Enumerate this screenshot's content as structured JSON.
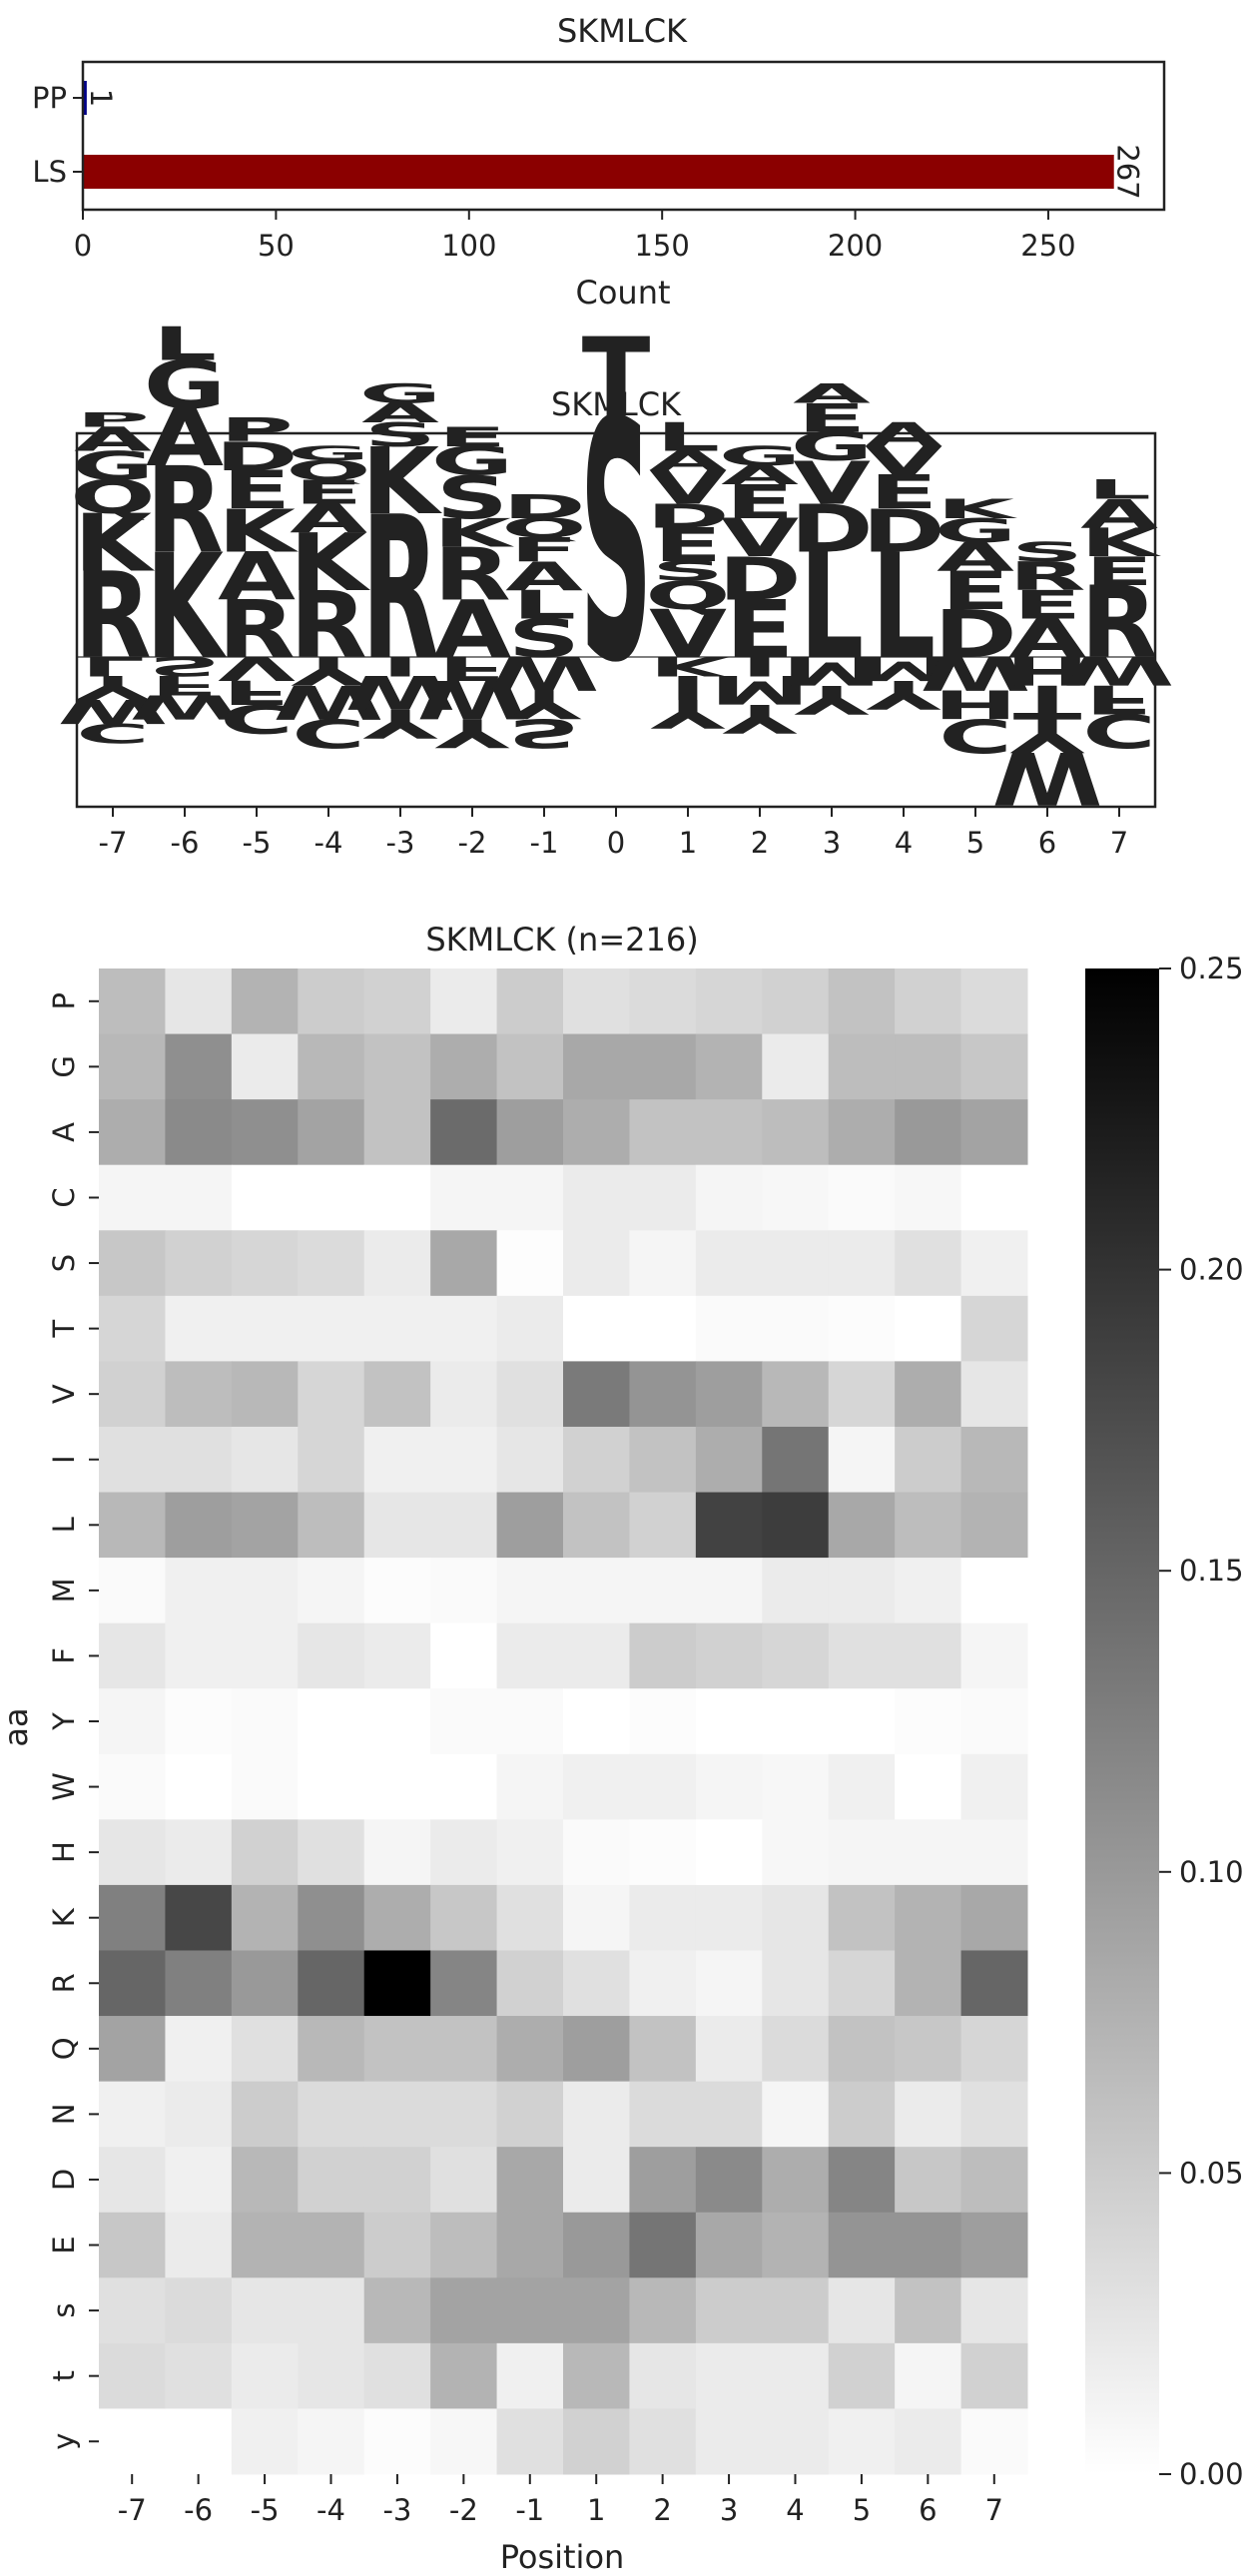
{
  "chart_data": [
    {
      "type": "bar",
      "orientation": "horizontal",
      "title": "SKMLCK",
      "xlabel": "Count",
      "ylabel": "",
      "categories": [
        "PP",
        "LS"
      ],
      "values": [
        1,
        267
      ],
      "value_labels": [
        "1",
        "267"
      ],
      "bar_colors": [
        "#00008b",
        "#8b0000"
      ],
      "xlim": [
        0,
        280
      ],
      "xticks": [
        "0",
        "50",
        "100",
        "150",
        "200",
        "250"
      ],
      "xtick_values": [
        0,
        50,
        100,
        150,
        200,
        250
      ]
    },
    {
      "type": "sequence_logo",
      "title": "SKMLCK",
      "xticks": [
        "-7",
        "-6",
        "-5",
        "-4",
        "-3",
        "-2",
        "-1",
        "0",
        "1",
        "2",
        "3",
        "4",
        "5",
        "6",
        "7"
      ],
      "color_scheme": {
        "KRH": "#0000ff",
        "DE": "#dc143c",
        "STsty": "#8b008b",
        "GAPCQN": "#008000",
        "LIVMFWY": "#daa520",
        "other": "#000000"
      },
      "positions": [
        {
          "pos": "-7",
          "up": [
            [
              "R",
              0.9
            ],
            [
              "K",
              0.6
            ],
            [
              "Q",
              0.35
            ],
            [
              "G",
              0.3
            ],
            [
              "A",
              0.25
            ],
            [
              "P",
              0.15
            ]
          ],
          "down": [
            [
              "L",
              0.2
            ],
            [
              "Y",
              0.25
            ],
            [
              "W",
              0.25
            ],
            [
              "C",
              0.2
            ]
          ]
        },
        {
          "pos": "-6",
          "up": [
            [
              "K",
              1.1
            ],
            [
              "R",
              0.9
            ],
            [
              "A",
              0.6
            ],
            [
              "G",
              0.5
            ],
            [
              "L",
              0.35
            ]
          ],
          "down": [
            [
              "S",
              0.2
            ],
            [
              "F",
              0.2
            ],
            [
              "W",
              0.25
            ]
          ]
        },
        {
          "pos": "-5",
          "up": [
            [
              "R",
              0.6
            ],
            [
              "A",
              0.5
            ],
            [
              "K",
              0.45
            ],
            [
              "E",
              0.4
            ],
            [
              "D",
              0.3
            ],
            [
              "P",
              0.25
            ]
          ],
          "down": [
            [
              "V",
              0.25
            ],
            [
              "F",
              0.25
            ],
            [
              "C",
              0.3
            ]
          ]
        },
        {
          "pos": "-4",
          "up": [
            [
              "R",
              0.7
            ],
            [
              "K",
              0.6
            ],
            [
              "A",
              0.3
            ],
            [
              "E",
              0.25
            ],
            [
              "Q",
              0.2
            ],
            [
              "G",
              0.15
            ]
          ],
          "down": [
            [
              "Y",
              0.3
            ],
            [
              "W",
              0.35
            ],
            [
              "C",
              0.3
            ]
          ]
        },
        {
          "pos": "-3",
          "up": [
            [
              "R",
              1.5
            ],
            [
              "K",
              0.7
            ],
            [
              "S",
              0.25
            ],
            [
              "A",
              0.2
            ],
            [
              "G",
              0.2
            ]
          ],
          "down": [
            [
              "I",
              0.2
            ],
            [
              "W",
              0.35
            ],
            [
              "Y",
              0.3
            ]
          ]
        },
        {
          "pos": "-2",
          "up": [
            [
              "A",
              0.6
            ],
            [
              "R",
              0.55
            ],
            [
              "K",
              0.3
            ],
            [
              "S",
              0.45
            ],
            [
              "G",
              0.3
            ],
            [
              "E",
              0.2
            ]
          ],
          "down": [
            [
              "F",
              0.25
            ],
            [
              "W",
              0.4
            ],
            [
              "Y",
              0.3
            ]
          ]
        },
        {
          "pos": "-1",
          "up": [
            [
              "S",
              0.4
            ],
            [
              "L",
              0.3
            ],
            [
              "A",
              0.3
            ],
            [
              "F",
              0.25
            ],
            [
              "Q",
              0.2
            ],
            [
              "D",
              0.25
            ]
          ],
          "down": [
            [
              "W",
              0.35
            ],
            [
              "Y",
              0.3
            ],
            [
              "S",
              0.3
            ]
          ]
        },
        {
          "pos": "0",
          "up": [
            [
              "S",
              2.5
            ],
            [
              "T",
              0.85
            ]
          ],
          "down": []
        },
        {
          "pos": "1",
          "up": [
            [
              "V",
              0.5
            ],
            [
              "Q",
              0.3
            ],
            [
              "S",
              0.2
            ],
            [
              "E",
              0.35
            ],
            [
              "D",
              0.25
            ],
            [
              "V",
              0.35
            ],
            [
              "A",
              0.2
            ],
            [
              "L",
              0.3
            ]
          ],
          "down": [
            [
              "K",
              0.2
            ],
            [
              "I",
              0.25
            ],
            [
              "Y",
              0.3
            ]
          ]
        },
        {
          "pos": "2",
          "up": [
            [
              "E",
              0.6
            ],
            [
              "D",
              0.45
            ],
            [
              "V",
              0.4
            ],
            [
              "E",
              0.35
            ],
            [
              "A",
              0.2
            ],
            [
              "G",
              0.2
            ]
          ],
          "down": [
            [
              "I",
              0.2
            ],
            [
              "M",
              0.3
            ],
            [
              "Y",
              0.3
            ]
          ]
        },
        {
          "pos": "3",
          "up": [
            [
              "L",
              1.1
            ],
            [
              "D",
              0.5
            ],
            [
              "V",
              0.45
            ],
            [
              "G",
              0.3
            ],
            [
              "E",
              0.3
            ],
            [
              "A",
              0.2
            ]
          ],
          "down": [
            [
              "M",
              0.3
            ],
            [
              "Y",
              0.3
            ]
          ]
        },
        {
          "pos": "4",
          "up": [
            [
              "L",
              1.1
            ],
            [
              "D",
              0.45
            ],
            [
              "E",
              0.35
            ],
            [
              "V",
              0.3
            ],
            [
              "A",
              0.25
            ]
          ],
          "down": [
            [
              "M",
              0.25
            ],
            [
              "Y",
              0.3
            ]
          ]
        },
        {
          "pos": "5",
          "up": [
            [
              "D",
              0.5
            ],
            [
              "E",
              0.4
            ],
            [
              "A",
              0.3
            ],
            [
              "G",
              0.25
            ],
            [
              "K",
              0.2
            ]
          ],
          "down": [
            [
              "W",
              0.35
            ],
            [
              "H",
              0.3
            ],
            [
              "C",
              0.35
            ]
          ]
        },
        {
          "pos": "6",
          "up": [
            [
              "A",
              0.4
            ],
            [
              "E",
              0.3
            ],
            [
              "R",
              0.3
            ],
            [
              "S",
              0.2
            ]
          ],
          "down": [
            [
              "H",
              0.3
            ],
            [
              "T",
              0.35
            ],
            [
              "Y",
              0.35
            ],
            [
              "W",
              0.55
            ]
          ]
        },
        {
          "pos": "7",
          "up": [
            [
              "R",
              0.75
            ],
            [
              "E",
              0.3
            ],
            [
              "K",
              0.3
            ],
            [
              "A",
              0.3
            ],
            [
              "L",
              0.2
            ]
          ],
          "down": [
            [
              "W",
              0.3
            ],
            [
              "F",
              0.3
            ],
            [
              "C",
              0.35
            ]
          ]
        }
      ]
    },
    {
      "type": "heatmap",
      "title": "SKMLCK (n=216)",
      "xlabel": "Position",
      "ylabel": "aa",
      "x": [
        "-7",
        "-6",
        "-5",
        "-4",
        "-3",
        "-2",
        "-1",
        "1",
        "2",
        "3",
        "4",
        "5",
        "6",
        "7"
      ],
      "y": [
        "P",
        "G",
        "A",
        "C",
        "S",
        "T",
        "V",
        "I",
        "L",
        "M",
        "F",
        "Y",
        "W",
        "H",
        "K",
        "R",
        "Q",
        "N",
        "D",
        "E",
        "s",
        "t",
        "y"
      ],
      "values": [
        [
          0.065,
          0.025,
          0.075,
          0.05,
          0.045,
          0.02,
          0.05,
          0.03,
          0.035,
          0.04,
          0.045,
          0.06,
          0.045,
          0.035
        ],
        [
          0.07,
          0.11,
          0.02,
          0.07,
          0.06,
          0.08,
          0.06,
          0.085,
          0.085,
          0.075,
          0.02,
          0.065,
          0.065,
          0.055
        ],
        [
          0.08,
          0.115,
          0.11,
          0.09,
          0.06,
          0.145,
          0.095,
          0.08,
          0.06,
          0.06,
          0.065,
          0.08,
          0.1,
          0.09
        ],
        [
          0.01,
          0.01,
          0.0,
          0.0,
          0.0,
          0.01,
          0.01,
          0.02,
          0.02,
          0.01,
          0.008,
          0.005,
          0.008,
          0.0
        ],
        [
          0.055,
          0.045,
          0.04,
          0.035,
          0.02,
          0.085,
          0.002,
          0.02,
          0.01,
          0.02,
          0.02,
          0.02,
          0.03,
          0.015
        ],
        [
          0.04,
          0.015,
          0.015,
          0.015,
          0.015,
          0.015,
          0.02,
          0.0,
          0.0,
          0.005,
          0.005,
          0.003,
          0.0,
          0.04
        ],
        [
          0.045,
          0.065,
          0.07,
          0.04,
          0.06,
          0.02,
          0.03,
          0.13,
          0.105,
          0.095,
          0.07,
          0.04,
          0.08,
          0.025
        ],
        [
          0.03,
          0.03,
          0.025,
          0.04,
          0.015,
          0.015,
          0.025,
          0.045,
          0.06,
          0.08,
          0.135,
          0.01,
          0.05,
          0.07
        ],
        [
          0.07,
          0.095,
          0.09,
          0.065,
          0.025,
          0.025,
          0.095,
          0.06,
          0.045,
          0.185,
          0.19,
          0.085,
          0.065,
          0.075
        ],
        [
          0.005,
          0.015,
          0.015,
          0.01,
          0.003,
          0.005,
          0.01,
          0.01,
          0.01,
          0.01,
          0.02,
          0.02,
          0.015,
          0.0
        ],
        [
          0.025,
          0.015,
          0.015,
          0.025,
          0.02,
          0.0,
          0.02,
          0.02,
          0.05,
          0.045,
          0.04,
          0.03,
          0.03,
          0.01
        ],
        [
          0.01,
          0.003,
          0.005,
          0.0,
          0.0,
          0.005,
          0.005,
          0.0,
          0.003,
          0.0,
          0.0,
          0.0,
          0.003,
          0.005
        ],
        [
          0.005,
          0.0,
          0.005,
          0.0,
          0.0,
          0.0,
          0.01,
          0.015,
          0.015,
          0.01,
          0.008,
          0.015,
          0.0,
          0.015
        ],
        [
          0.025,
          0.02,
          0.045,
          0.03,
          0.01,
          0.02,
          0.015,
          0.005,
          0.003,
          0.0,
          0.008,
          0.01,
          0.01,
          0.01
        ],
        [
          0.125,
          0.18,
          0.075,
          0.11,
          0.08,
          0.055,
          0.03,
          0.01,
          0.02,
          0.02,
          0.025,
          0.06,
          0.075,
          0.085
        ],
        [
          0.15,
          0.125,
          0.1,
          0.15,
          0.25,
          0.12,
          0.045,
          0.03,
          0.015,
          0.01,
          0.025,
          0.04,
          0.075,
          0.15
        ],
        [
          0.09,
          0.015,
          0.03,
          0.07,
          0.06,
          0.06,
          0.08,
          0.095,
          0.06,
          0.02,
          0.035,
          0.06,
          0.055,
          0.04
        ],
        [
          0.015,
          0.02,
          0.05,
          0.035,
          0.035,
          0.035,
          0.045,
          0.02,
          0.035,
          0.035,
          0.01,
          0.05,
          0.02,
          0.03
        ],
        [
          0.025,
          0.015,
          0.07,
          0.045,
          0.045,
          0.03,
          0.085,
          0.02,
          0.095,
          0.115,
          0.08,
          0.12,
          0.055,
          0.065
        ],
        [
          0.055,
          0.02,
          0.075,
          0.075,
          0.05,
          0.065,
          0.085,
          0.1,
          0.135,
          0.085,
          0.075,
          0.105,
          0.105,
          0.095
        ],
        [
          0.03,
          0.035,
          0.025,
          0.025,
          0.07,
          0.09,
          0.09,
          0.09,
          0.07,
          0.05,
          0.05,
          0.025,
          0.06,
          0.025
        ],
        [
          0.035,
          0.03,
          0.02,
          0.025,
          0.03,
          0.075,
          0.015,
          0.07,
          0.025,
          0.02,
          0.02,
          0.045,
          0.01,
          0.045
        ],
        [
          0.0,
          0.0,
          0.015,
          0.01,
          0.003,
          0.008,
          0.03,
          0.045,
          0.03,
          0.02,
          0.02,
          0.015,
          0.02,
          0.005
        ]
      ],
      "colorbar": {
        "range": [
          0.0,
          0.25
        ],
        "ticks": [
          "0.00",
          "0.05",
          "0.10",
          "0.15",
          "0.20",
          "0.25"
        ],
        "tick_values": [
          0.0,
          0.05,
          0.1,
          0.15,
          0.2,
          0.25
        ]
      }
    }
  ]
}
